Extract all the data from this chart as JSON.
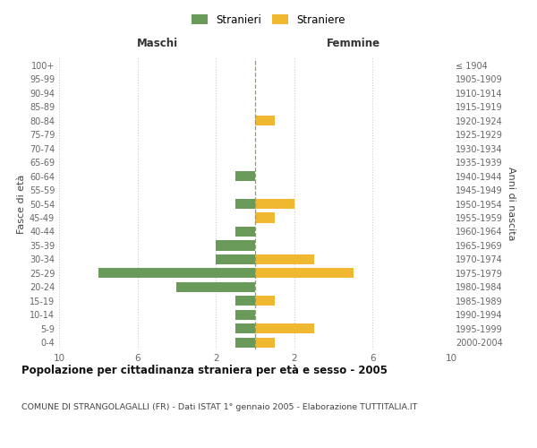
{
  "age_groups": [
    "100+",
    "95-99",
    "90-94",
    "85-89",
    "80-84",
    "75-79",
    "70-74",
    "65-69",
    "60-64",
    "55-59",
    "50-54",
    "45-49",
    "40-44",
    "35-39",
    "30-34",
    "25-29",
    "20-24",
    "15-19",
    "10-14",
    "5-9",
    "0-4"
  ],
  "birth_years": [
    "≤ 1904",
    "1905-1909",
    "1910-1914",
    "1915-1919",
    "1920-1924",
    "1925-1929",
    "1930-1934",
    "1935-1939",
    "1940-1944",
    "1945-1949",
    "1950-1954",
    "1955-1959",
    "1960-1964",
    "1965-1969",
    "1970-1974",
    "1975-1979",
    "1980-1984",
    "1985-1989",
    "1990-1994",
    "1995-1999",
    "2000-2004"
  ],
  "males": [
    0,
    0,
    0,
    0,
    0,
    0,
    0,
    0,
    1,
    0,
    1,
    0,
    1,
    2,
    2,
    8,
    4,
    1,
    1,
    1,
    1
  ],
  "females": [
    0,
    0,
    0,
    0,
    1,
    0,
    0,
    0,
    0,
    0,
    2,
    1,
    0,
    0,
    3,
    5,
    0,
    1,
    0,
    3,
    1
  ],
  "color_male": "#6a9a5a",
  "color_female": "#f0b830",
  "background_color": "#ffffff",
  "grid_color": "#cccccc",
  "title": "Popolazione per cittadinanza straniera per età e sesso - 2005",
  "subtitle": "COMUNE DI STRANGOLAGALLI (FR) - Dati ISTAT 1° gennaio 2005 - Elaborazione TUTTITALIA.IT",
  "xlabel_left": "Maschi",
  "xlabel_right": "Femmine",
  "ylabel_left": "Fasce di età",
  "ylabel_right": "Anni di nascita",
  "legend_male": "Stranieri",
  "legend_female": "Straniere",
  "xlim": 10
}
